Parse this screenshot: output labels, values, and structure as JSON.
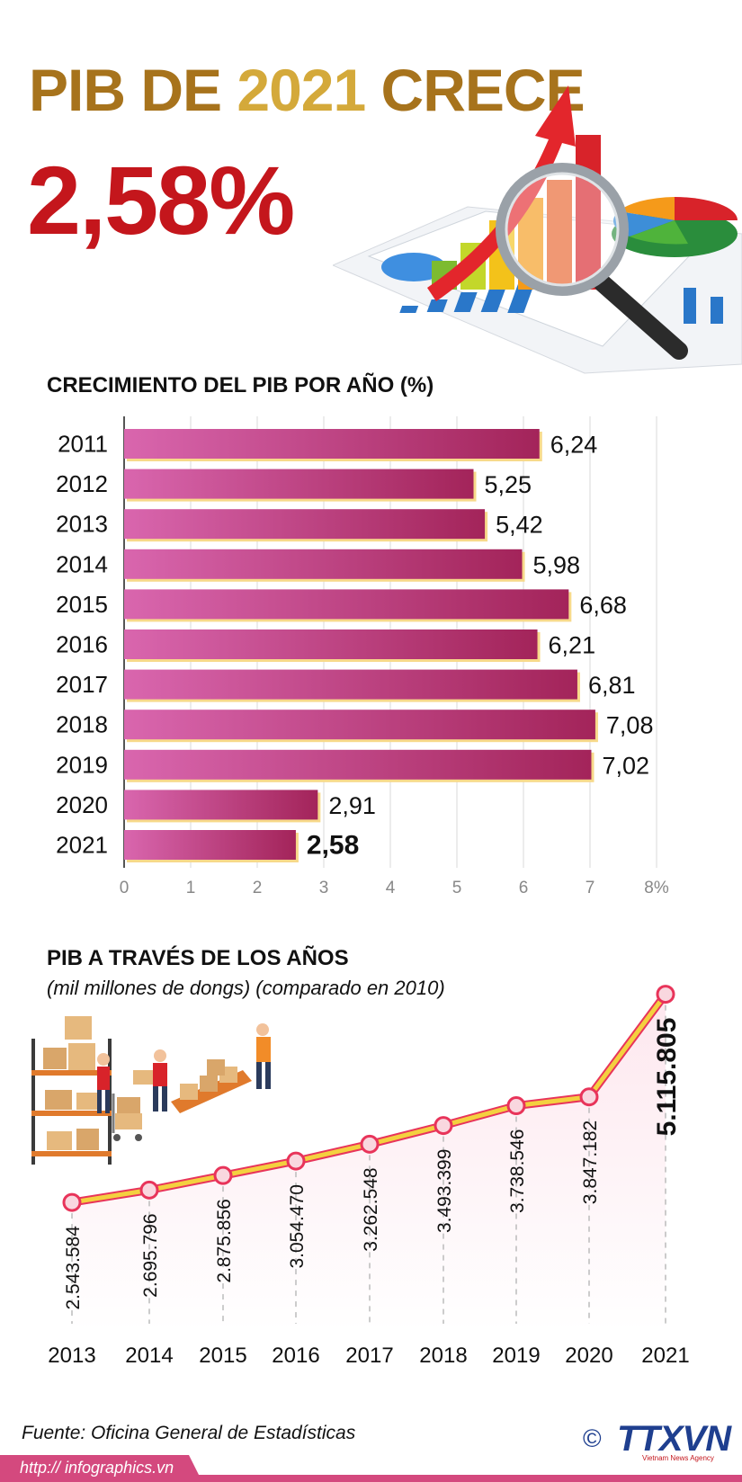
{
  "header": {
    "title_part1": "PIB DE ",
    "title_year": "2021",
    "title_part2": " CRECE",
    "headline_value": "2,58%"
  },
  "colors": {
    "title_gold_dark": "#a7731c",
    "title_gold_light": "#d4a93a",
    "headline_red": "#c4161c",
    "bar_start": "#d966ae",
    "bar_end": "#a3245a",
    "bar_shadow": "#f7d98a",
    "line_yellow": "#f4d03f",
    "line_red": "#e8345a",
    "point_fill": "#f9d7df",
    "area_fill": "#fde7ee",
    "footer_bar": "#d4497e",
    "logo_blue": "#1f3f8f"
  },
  "chart_data": [
    {
      "type": "bar",
      "title": "CRECIMIENTO DEL PIB POR AÑO (%)",
      "categories": [
        "2011",
        "2012",
        "2013",
        "2014",
        "2015",
        "2016",
        "2017",
        "2018",
        "2019",
        "2020",
        "2021"
      ],
      "values": [
        6.24,
        5.25,
        5.42,
        5.98,
        6.68,
        6.21,
        6.81,
        7.08,
        7.02,
        2.91,
        2.58
      ],
      "value_labels": [
        "6,24",
        "5,25",
        "5,42",
        "5,98",
        "6,68",
        "6,21",
        "6,81",
        "7,08",
        "7,02",
        "2,91",
        "2,58"
      ],
      "xlim": [
        0,
        8
      ],
      "x_ticks": [
        "0",
        "1",
        "2",
        "3",
        "4",
        "5",
        "6",
        "7",
        "8%"
      ],
      "grid": true,
      "orientation": "horizontal"
    },
    {
      "type": "line",
      "title": "PIB A TRAVÉS DE LOS AÑOS",
      "subtitle": "(mil millones de dongs) (comparado en 2010)",
      "x": [
        "2013",
        "2014",
        "2015",
        "2016",
        "2017",
        "2018",
        "2019",
        "2020",
        "2021"
      ],
      "values": [
        2543584,
        2695796,
        2875856,
        3054470,
        3262548,
        3493399,
        3738546,
        3847182,
        5115805
      ],
      "value_labels": [
        "2.543.584",
        "2.695.796",
        "2.875.856",
        "3.054.470",
        "3.262.548",
        "3.493.399",
        "3.738.546",
        "3.847.182",
        "5.115.805"
      ],
      "ylim": [
        2400000,
        5200000
      ]
    }
  ],
  "footer": {
    "source": "Fuente: Oficina General de Estadísticas",
    "url": "http:// infographics.vn",
    "copyright_symbol": "©",
    "logo_text": "TTXVN",
    "logo_subtitle": "Vietnam News Agency"
  }
}
